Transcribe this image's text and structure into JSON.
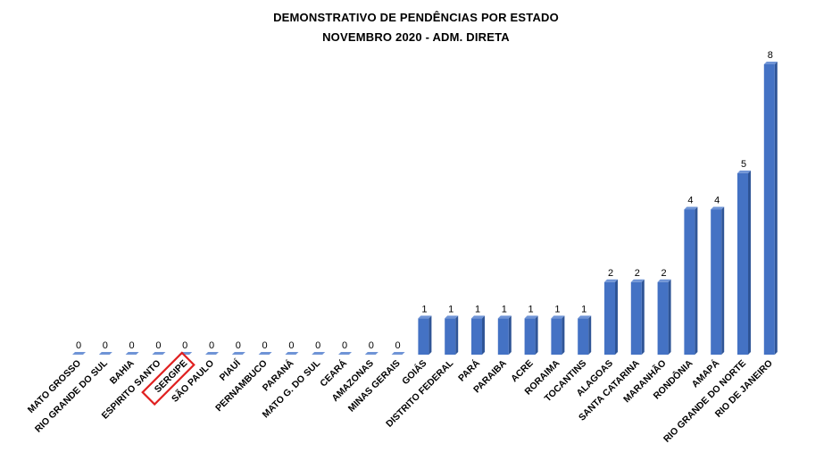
{
  "chart_data": {
    "type": "bar",
    "title": "DEMONSTRATIVO DE PENDÊNCIAS POR ESTADO",
    "subtitle": "NOVEMBRO 2020 - ADM. DIRETA",
    "categories": [
      "MATO GROSSO",
      "RIO GRANDE DO SUL",
      "BAHIA",
      "ESPIRITO  SANTO",
      "SERGIPE",
      "SÃO PAULO",
      "PIAUÍ",
      "PERNAMBUCO",
      "PARANÁ",
      "MATO G. DO SUL",
      "CEARÁ",
      "AMAZONAS",
      "MINAS GERAIS",
      "GOIÁS",
      "DISTRITO  FEDERAL",
      "PARÁ",
      "PARAIBA",
      "ACRE",
      "RORAIMA",
      "TOCANTINS",
      "ALAGOAS",
      "SANTA CATARINA",
      "MARANHÃO",
      "RONDÔNIA",
      "AMAPÁ",
      "RIO GRANDE DO NORTE",
      "RIO DE JANEIRO"
    ],
    "values": [
      0,
      0,
      0,
      0,
      0,
      0,
      0,
      0,
      0,
      0,
      0,
      0,
      0,
      1,
      1,
      1,
      1,
      1,
      1,
      1,
      2,
      2,
      2,
      4,
      4,
      5,
      8
    ],
    "ylim": [
      0,
      8
    ],
    "grid": false,
    "legend": "none",
    "data_labels": true,
    "highlighted_category": "SERGIPE",
    "colors": {
      "bar_front": "#4472C4",
      "bar_side": "#2F5597",
      "bar_top": "#6F94D6",
      "highlight_box": "#E02020"
    }
  }
}
